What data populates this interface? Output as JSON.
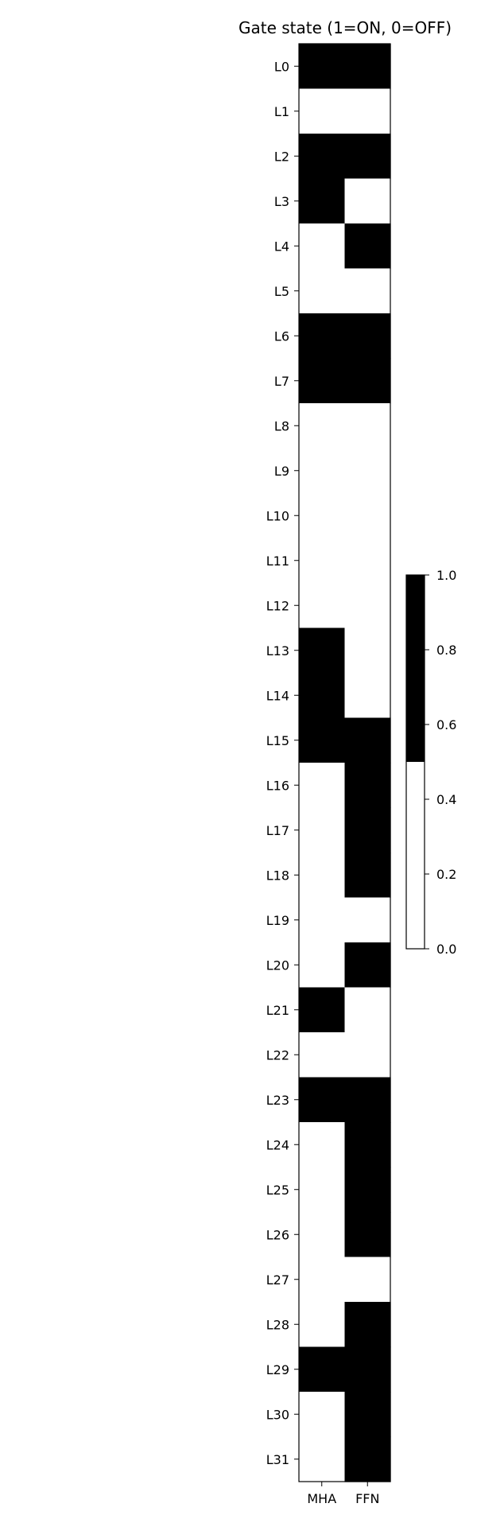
{
  "chart_data": {
    "type": "heatmap",
    "title": "Gate state (1=ON, 0=OFF)",
    "columns": [
      "MHA",
      "FFN"
    ],
    "rows": [
      "L0",
      "L1",
      "L2",
      "L3",
      "L4",
      "L5",
      "L6",
      "L7",
      "L8",
      "L9",
      "L10",
      "L11",
      "L12",
      "L13",
      "L14",
      "L15",
      "L16",
      "L17",
      "L18",
      "L19",
      "L20",
      "L21",
      "L22",
      "L23",
      "L24",
      "L25",
      "L26",
      "L27",
      "L28",
      "L29",
      "L30",
      "L31"
    ],
    "values": [
      [
        1,
        1
      ],
      [
        0,
        0
      ],
      [
        1,
        1
      ],
      [
        1,
        0
      ],
      [
        0,
        1
      ],
      [
        0,
        0
      ],
      [
        1,
        1
      ],
      [
        1,
        1
      ],
      [
        0,
        0
      ],
      [
        0,
        0
      ],
      [
        0,
        0
      ],
      [
        0,
        0
      ],
      [
        0,
        0
      ],
      [
        1,
        0
      ],
      [
        1,
        0
      ],
      [
        1,
        1
      ],
      [
        0,
        1
      ],
      [
        0,
        1
      ],
      [
        0,
        1
      ],
      [
        0,
        0
      ],
      [
        0,
        1
      ],
      [
        1,
        0
      ],
      [
        0,
        0
      ],
      [
        1,
        1
      ],
      [
        0,
        1
      ],
      [
        0,
        1
      ],
      [
        0,
        1
      ],
      [
        0,
        0
      ],
      [
        0,
        1
      ],
      [
        1,
        1
      ],
      [
        0,
        1
      ],
      [
        0,
        1
      ]
    ],
    "colormap": {
      "0": "#ffffff",
      "1": "#000000"
    },
    "colorbar": {
      "range": [
        0.0,
        1.0
      ],
      "ticks": [
        "0.0",
        "0.2",
        "0.4",
        "0.6",
        "0.8",
        "1.0"
      ]
    }
  }
}
